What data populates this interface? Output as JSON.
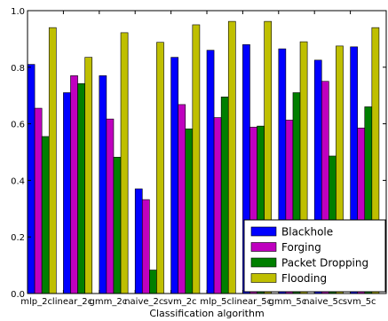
{
  "chart_data": {
    "type": "bar",
    "title": "",
    "xlabel": "Classification algorithm",
    "ylabel": "",
    "ylim": [
      0,
      1.0
    ],
    "yticks": [
      "0.0",
      "0.2",
      "0.4",
      "0.6",
      "0.8",
      "1.0"
    ],
    "grid": false,
    "legend_position": "bottom-right",
    "categories": [
      "mlp_2c",
      "linear_2c",
      "gmm_2c",
      "naive_2c",
      "svm_2c",
      "mlp_5c",
      "linear_5c",
      "gmm_5c",
      "naive_5c",
      "svm_5c"
    ],
    "series": [
      {
        "name": "Blackhole",
        "color": "#0000ff",
        "values": [
          0.81,
          0.71,
          0.77,
          0.37,
          0.835,
          0.86,
          0.88,
          0.865,
          0.825,
          0.872
        ]
      },
      {
        "name": "Forging",
        "color": "#bf00bf",
        "values": [
          0.655,
          0.77,
          0.617,
          0.332,
          0.668,
          0.622,
          0.588,
          0.613,
          0.75,
          0.585
        ]
      },
      {
        "name": "Packet Dropping",
        "color": "#007f00",
        "values": [
          0.555,
          0.742,
          0.482,
          0.083,
          0.582,
          0.695,
          0.592,
          0.71,
          0.486,
          0.66
        ]
      },
      {
        "name": "Flooding",
        "color": "#bfbf00",
        "values": [
          0.94,
          0.835,
          0.922,
          0.888,
          0.95,
          0.962,
          0.962,
          0.89,
          0.875,
          0.94
        ]
      }
    ]
  }
}
